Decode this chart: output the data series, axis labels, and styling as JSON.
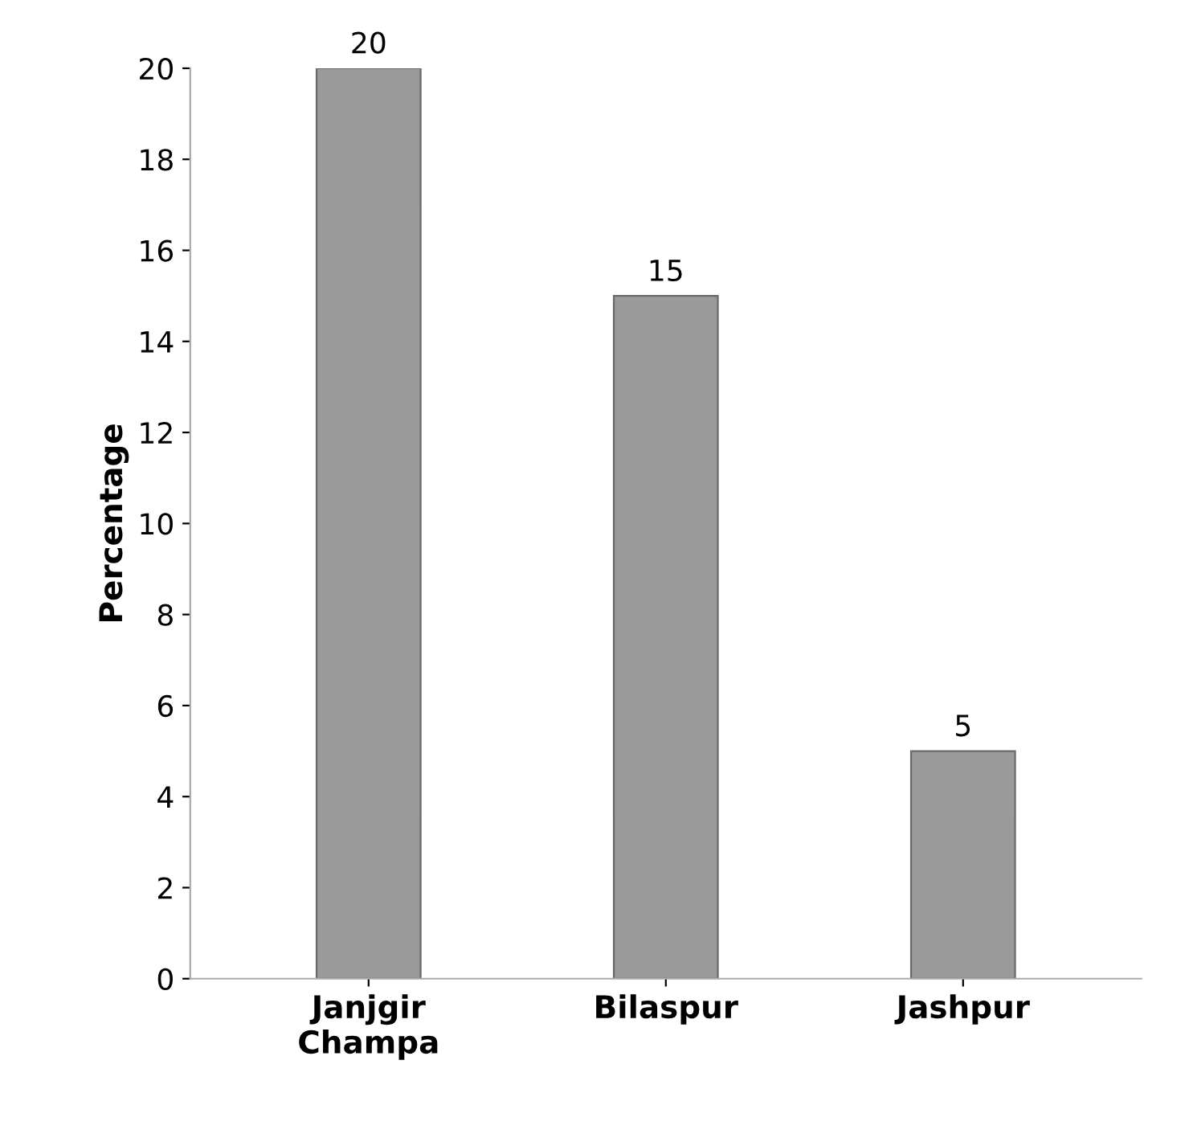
{
  "chart_data": {
    "type": "bar",
    "ylabel": "Percentage",
    "categories": [
      "Janjgir\nChampa",
      "Bilaspur",
      "Jashpur"
    ],
    "values": [
      20,
      15,
      5
    ],
    "color": "#9a9a9a",
    "ylim": [
      0,
      20
    ],
    "yticks": [
      0,
      2,
      4,
      6,
      8,
      10,
      12,
      14,
      16,
      18,
      20
    ],
    "data_labels": true
  }
}
